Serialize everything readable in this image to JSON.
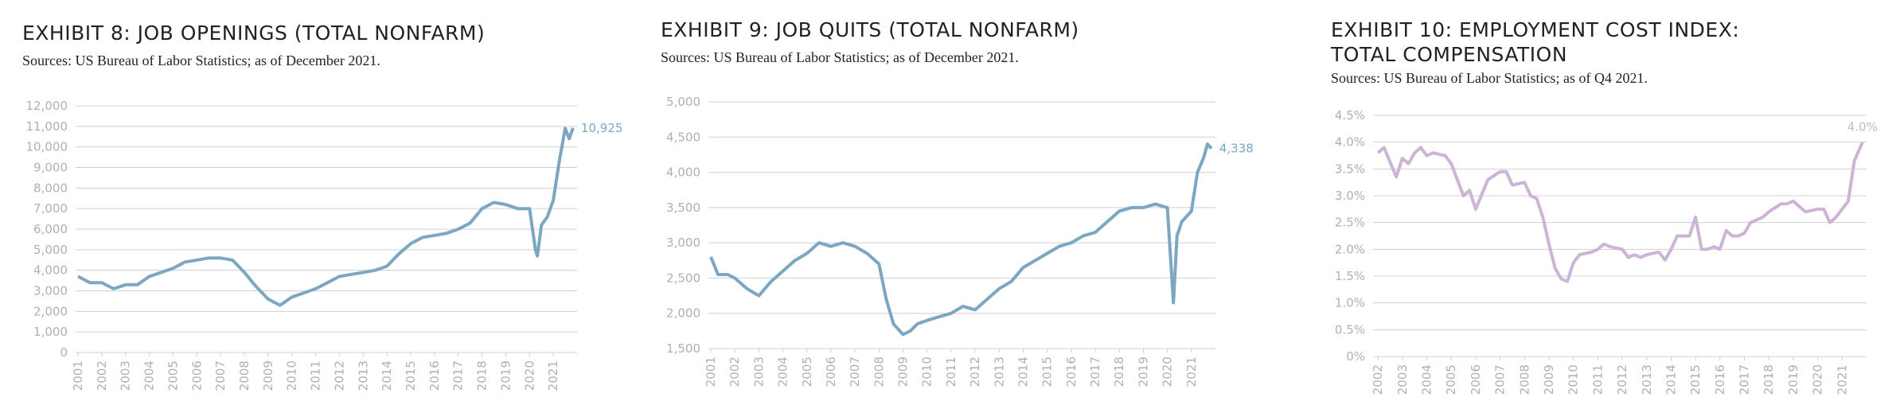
{
  "chart_data": [
    {
      "type": "line",
      "title": "EXHIBIT 8: JOB OPENINGS (TOTAL NONFARM)",
      "subtitle": "Sources: US Bureau of Labor Statistics; as of December 2021.",
      "color": "#7ba7c2",
      "x": [
        2001,
        2001.5,
        2002,
        2002.5,
        2003,
        2003.5,
        2004,
        2004.5,
        2005,
        2005.5,
        2006,
        2006.5,
        2007,
        2007.5,
        2008,
        2008.5,
        2009,
        2009.5,
        2010,
        2010.5,
        2011,
        2011.5,
        2012,
        2012.5,
        2013,
        2013.5,
        2014,
        2014.5,
        2015,
        2015.5,
        2016,
        2016.5,
        2017,
        2017.5,
        2018,
        2018.5,
        2019,
        2019.5,
        2020,
        2020.25,
        2020.33,
        2020.5,
        2020.75,
        2021,
        2021.25,
        2021.5,
        2021.67,
        2021.83
      ],
      "values": [
        3700,
        3400,
        3400,
        3100,
        3300,
        3300,
        3700,
        3900,
        4100,
        4400,
        4500,
        4600,
        4600,
        4500,
        3900,
        3200,
        2600,
        2300,
        2700,
        2900,
        3100,
        3400,
        3700,
        3800,
        3900,
        4000,
        4200,
        4800,
        5300,
        5600,
        5700,
        5800,
        6000,
        6300,
        7000,
        7300,
        7200,
        7000,
        7000,
        5000,
        4700,
        6200,
        6600,
        7400,
        9300,
        10900,
        10400,
        10925
      ],
      "value_labels": [
        null,
        null,
        null,
        null,
        null,
        null,
        null,
        null,
        null,
        null,
        null,
        null,
        null,
        null,
        null,
        null,
        null,
        null,
        null,
        null,
        null,
        null,
        null,
        null,
        null,
        null,
        null,
        null,
        null,
        null,
        null,
        null,
        null,
        null,
        null,
        null,
        null,
        null,
        null,
        null,
        null,
        null,
        null,
        null,
        null,
        null,
        null,
        "10,925"
      ],
      "xlim": [
        2000.9,
        2022
      ],
      "xticks": [
        2001,
        2002,
        2003,
        2004,
        2005,
        2006,
        2007,
        2008,
        2009,
        2010,
        2011,
        2012,
        2013,
        2014,
        2015,
        2016,
        2017,
        2018,
        2019,
        2020,
        2021
      ],
      "ylim": [
        0,
        12000
      ],
      "yticks": [
        0,
        {
          "value": 1000,
          "label": "1,000"
        },
        {
          "value": 2000,
          "label": "2,000"
        },
        {
          "value": 3000,
          "label": "3,000"
        },
        {
          "value": 4000,
          "label": "4,000"
        },
        {
          "value": 5000,
          "label": "5,000"
        },
        {
          "value": 6000,
          "label": "6,000"
        },
        {
          "value": 7000,
          "label": "7,000"
        },
        {
          "value": 8000,
          "label": "8,000"
        },
        {
          "value": 9000,
          "label": "9,000"
        },
        {
          "value": 10000,
          "label": "10,000"
        },
        {
          "value": 11000,
          "label": "11,000"
        },
        {
          "value": 12000,
          "label": "12,000"
        }
      ],
      "grid": true
    },
    {
      "type": "line",
      "title": "EXHIBIT 9: JOB QUITS (TOTAL NONFARM)",
      "subtitle": "Sources: US Bureau of Labor Statistics; as of December 2021.",
      "color": "#7ba7c2",
      "x": [
        2001,
        2001.3,
        2001.7,
        2002,
        2002.5,
        2003,
        2003.5,
        2004,
        2004.5,
        2005,
        2005.5,
        2006,
        2006.5,
        2007,
        2007.5,
        2008,
        2008.3,
        2008.6,
        2009,
        2009.3,
        2009.6,
        2010,
        2010.5,
        2011,
        2011.5,
        2012,
        2012.5,
        2013,
        2013.5,
        2014,
        2014.5,
        2015,
        2015.5,
        2016,
        2016.5,
        2017,
        2017.5,
        2018,
        2018.5,
        2019,
        2019.5,
        2020,
        2020.25,
        2020.4,
        2020.6,
        2021,
        2021.25,
        2021.5,
        2021.67,
        2021.83
      ],
      "values": [
        2800,
        2550,
        2550,
        2500,
        2350,
        2250,
        2450,
        2600,
        2750,
        2850,
        3000,
        2950,
        3000,
        2950,
        2850,
        2700,
        2200,
        1850,
        1700,
        1750,
        1850,
        1900,
        1950,
        2000,
        2100,
        2050,
        2200,
        2350,
        2450,
        2650,
        2750,
        2850,
        2950,
        3000,
        3100,
        3150,
        3300,
        3450,
        3500,
        3500,
        3550,
        3500,
        2150,
        3100,
        3300,
        3450,
        4000,
        4200,
        4400,
        4338
      ],
      "value_labels": [
        null,
        null,
        null,
        null,
        null,
        null,
        null,
        null,
        null,
        null,
        null,
        null,
        null,
        null,
        null,
        null,
        null,
        null,
        null,
        null,
        null,
        null,
        null,
        null,
        null,
        null,
        null,
        null,
        null,
        null,
        null,
        null,
        null,
        null,
        null,
        null,
        null,
        null,
        null,
        null,
        null,
        null,
        null,
        null,
        null,
        null,
        null,
        null,
        null,
        "4,338"
      ],
      "xlim": [
        2000.9,
        2022
      ],
      "xticks": [
        2001,
        2002,
        2003,
        2004,
        2005,
        2006,
        2007,
        2008,
        2009,
        2010,
        2011,
        2012,
        2013,
        2014,
        2015,
        2016,
        2017,
        2018,
        2019,
        2020,
        2021
      ],
      "ylim": [
        1500,
        5000
      ],
      "yticks": [
        {
          "value": 1500,
          "label": "1,500"
        },
        {
          "value": 2000,
          "label": "2,000"
        },
        {
          "value": 2500,
          "label": "2,500"
        },
        {
          "value": 3000,
          "label": "3,000"
        },
        {
          "value": 3500,
          "label": "3,500"
        },
        {
          "value": 4000,
          "label": "4,000"
        },
        {
          "value": 4500,
          "label": "4,500"
        },
        {
          "value": 5000,
          "label": "5,000"
        }
      ],
      "grid": true
    },
    {
      "type": "line",
      "title": "EXHIBIT 10: EMPLOYMENT COST INDEX: TOTAL COMPENSATION",
      "subtitle": "Sources: US Bureau of Labor Statistics; as of Q4 2021.",
      "color": "#cdb4d6",
      "x": [
        2002,
        2002.25,
        2002.75,
        2003,
        2003.25,
        2003.5,
        2003.75,
        2004,
        2004.25,
        2004.75,
        2005,
        2005.25,
        2005.5,
        2005.75,
        2006,
        2006.5,
        2007,
        2007.25,
        2007.5,
        2008,
        2008.25,
        2008.5,
        2008.75,
        2009,
        2009.25,
        2009.5,
        2009.75,
        2010,
        2010.25,
        2010.75,
        2011,
        2011.25,
        2011.5,
        2012,
        2012.25,
        2012.5,
        2012.75,
        2013,
        2013.5,
        2013.75,
        2014,
        2014.25,
        2014.75,
        2015,
        2015.25,
        2015.5,
        2015.75,
        2016,
        2016.25,
        2016.5,
        2016.75,
        2017,
        2017.25,
        2017.75,
        2018,
        2018.5,
        2018.75,
        2019,
        2019.5,
        2020,
        2020.25,
        2020.5,
        2020.75,
        2021,
        2021.25,
        2021.5,
        2021.83
      ],
      "values": [
        3.8,
        3.9,
        3.35,
        3.7,
        3.6,
        3.8,
        3.9,
        3.75,
        3.8,
        3.75,
        3.6,
        3.3,
        3.0,
        3.1,
        2.75,
        3.3,
        3.45,
        3.45,
        3.2,
        3.25,
        3.0,
        2.95,
        2.6,
        2.1,
        1.65,
        1.45,
        1.4,
        1.75,
        1.9,
        1.95,
        2.0,
        2.1,
        2.05,
        2.0,
        1.85,
        1.9,
        1.85,
        1.9,
        1.95,
        1.8,
        2.0,
        2.25,
        2.25,
        2.6,
        2.0,
        2.0,
        2.05,
        2.0,
        2.35,
        2.25,
        2.25,
        2.3,
        2.5,
        2.6,
        2.7,
        2.85,
        2.85,
        2.9,
        2.7,
        2.75,
        2.75,
        2.5,
        2.6,
        2.75,
        2.9,
        3.65,
        4.0
      ],
      "value_labels": [
        null,
        null,
        null,
        null,
        null,
        null,
        null,
        null,
        null,
        null,
        null,
        null,
        null,
        null,
        null,
        null,
        null,
        null,
        null,
        null,
        null,
        null,
        null,
        null,
        null,
        null,
        null,
        null,
        null,
        null,
        null,
        null,
        null,
        null,
        null,
        null,
        null,
        null,
        null,
        null,
        null,
        null,
        null,
        null,
        null,
        null,
        null,
        null,
        null,
        null,
        null,
        null,
        null,
        null,
        null,
        null,
        null,
        null,
        null,
        null,
        null,
        null,
        null,
        null,
        null,
        null,
        "4.0%"
      ],
      "xlim": [
        2001.8,
        2022
      ],
      "xticks": [
        2002,
        2003,
        2004,
        2005,
        2006,
        2007,
        2008,
        2009,
        2010,
        2011,
        2012,
        2013,
        2014,
        2015,
        2016,
        2017,
        2018,
        2019,
        2020,
        2021
      ],
      "ylim": [
        0,
        4.5
      ],
      "yticks": [
        {
          "value": 0,
          "label": "0%"
        },
        {
          "value": 0.5,
          "label": "0.5%"
        },
        {
          "value": 1,
          "label": "1.0%"
        },
        {
          "value": 1.5,
          "label": "1.5%"
        },
        {
          "value": 2,
          "label": "2.0%"
        },
        {
          "value": 2.5,
          "label": "2.5%"
        },
        {
          "value": 3,
          "label": "3.0%"
        },
        {
          "value": 3.5,
          "label": "3.5%"
        },
        {
          "value": 4,
          "label": "4.0%"
        },
        {
          "value": 4.5,
          "label": "4.5%"
        }
      ],
      "grid": true
    }
  ]
}
